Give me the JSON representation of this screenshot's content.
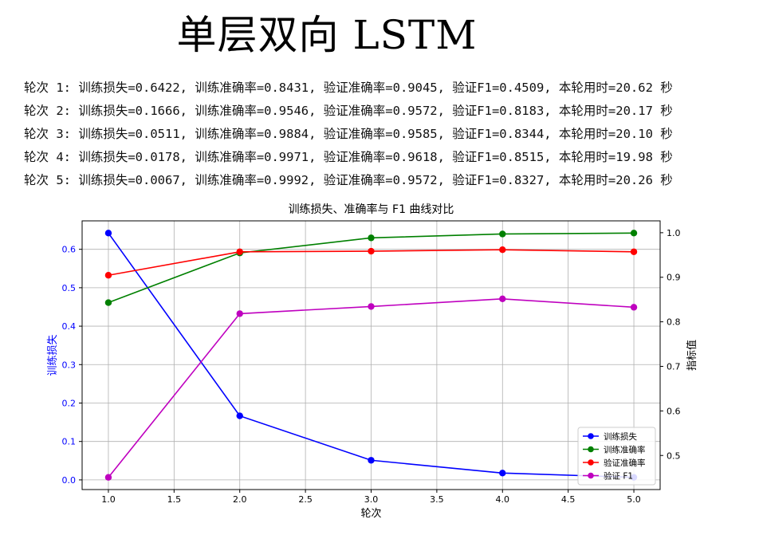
{
  "page_title": "单层双向 LSTM",
  "log_lines": [
    "轮次 1: 训练损失=0.6422, 训练准确率=0.8431, 验证准确率=0.9045, 验证F1=0.4509, 本轮用时=20.62 秒",
    "轮次 2: 训练损失=0.1666, 训练准确率=0.9546, 验证准确率=0.9572, 验证F1=0.8183, 本轮用时=20.17 秒",
    "轮次 3: 训练损失=0.0511, 训练准确率=0.9884, 验证准确率=0.9585, 验证F1=0.8344, 本轮用时=20.10 秒",
    "轮次 4: 训练损失=0.0178, 训练准确率=0.9971, 验证准确率=0.9618, 验证F1=0.8515, 本轮用时=19.98 秒",
    "轮次 5: 训练损失=0.0067, 训练准确率=0.9992, 验证准确率=0.9572, 验证F1=0.8327, 本轮用时=20.26 秒"
  ],
  "chart_data": {
    "type": "line",
    "title": "训练损失、准确率与 F1 曲线对比",
    "xlabel": "轮次",
    "ylabel_left": "训练损失",
    "ylabel_right": "指标值",
    "x": [
      1,
      2,
      3,
      4,
      5
    ],
    "xlim": [
      0.8,
      5.2
    ],
    "xticks": [
      "1.0",
      "1.5",
      "2.0",
      "2.5",
      "3.0",
      "3.5",
      "4.0",
      "4.5",
      "5.0"
    ],
    "ylim_left": [
      -0.0251,
      0.674
    ],
    "yticks_left": [
      "0.0",
      "0.1",
      "0.2",
      "0.3",
      "0.4",
      "0.5",
      "0.6"
    ],
    "ylim_right": [
      0.4235,
      1.0266
    ],
    "yticks_right": [
      "0.5",
      "0.6",
      "0.7",
      "0.8",
      "0.9",
      "1.0"
    ],
    "grid": true,
    "legend_position": "lower-right",
    "series": [
      {
        "name": "训练损失",
        "axis": "left",
        "color": "#0000ff",
        "values": [
          0.6422,
          0.1666,
          0.0511,
          0.0178,
          0.0067
        ]
      },
      {
        "name": "训练准确率",
        "axis": "right",
        "color": "#008000",
        "values": [
          0.8431,
          0.9546,
          0.9884,
          0.9971,
          0.9992
        ]
      },
      {
        "name": "验证准确率",
        "axis": "right",
        "color": "#ff0000",
        "values": [
          0.9045,
          0.9572,
          0.9585,
          0.9618,
          0.9572
        ]
      },
      {
        "name": "验证 F1",
        "axis": "right",
        "color": "#bf00bf",
        "values": [
          0.4509,
          0.8183,
          0.8344,
          0.8515,
          0.8327
        ]
      }
    ]
  }
}
